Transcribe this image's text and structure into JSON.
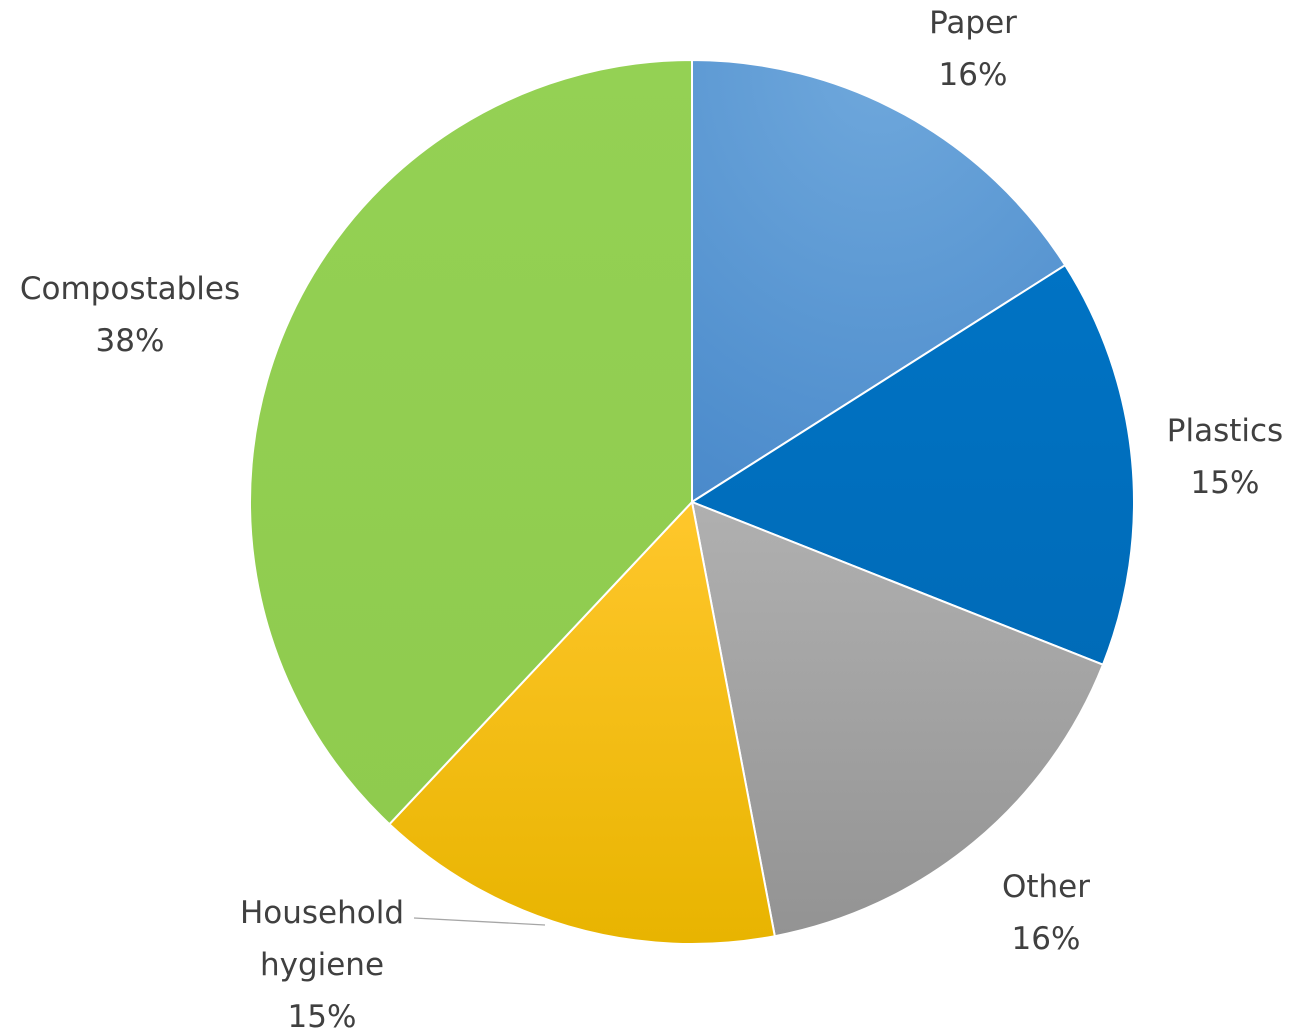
{
  "chart_data": {
    "type": "pie",
    "title": "",
    "start_angle_deg": 0,
    "direction": "clockwise",
    "slices": [
      {
        "name": "Paper",
        "value": 16,
        "label": "16%",
        "color": "#5B9BD5"
      },
      {
        "name": "Plastics",
        "value": 15,
        "label": "15%",
        "color": "#0070C0"
      },
      {
        "name": "Other",
        "value": 16,
        "label": "16%",
        "color": "#A5A5A5"
      },
      {
        "name": "Household hygiene",
        "name_lines": [
          "Household",
          "hygiene"
        ],
        "value": 15,
        "label": "15%",
        "color": "#FFC000"
      },
      {
        "name": "Compostables",
        "value": 38,
        "label": "38%",
        "color": "#92D050"
      }
    ],
    "legend": "none",
    "data_labels": "category name and percentage"
  }
}
